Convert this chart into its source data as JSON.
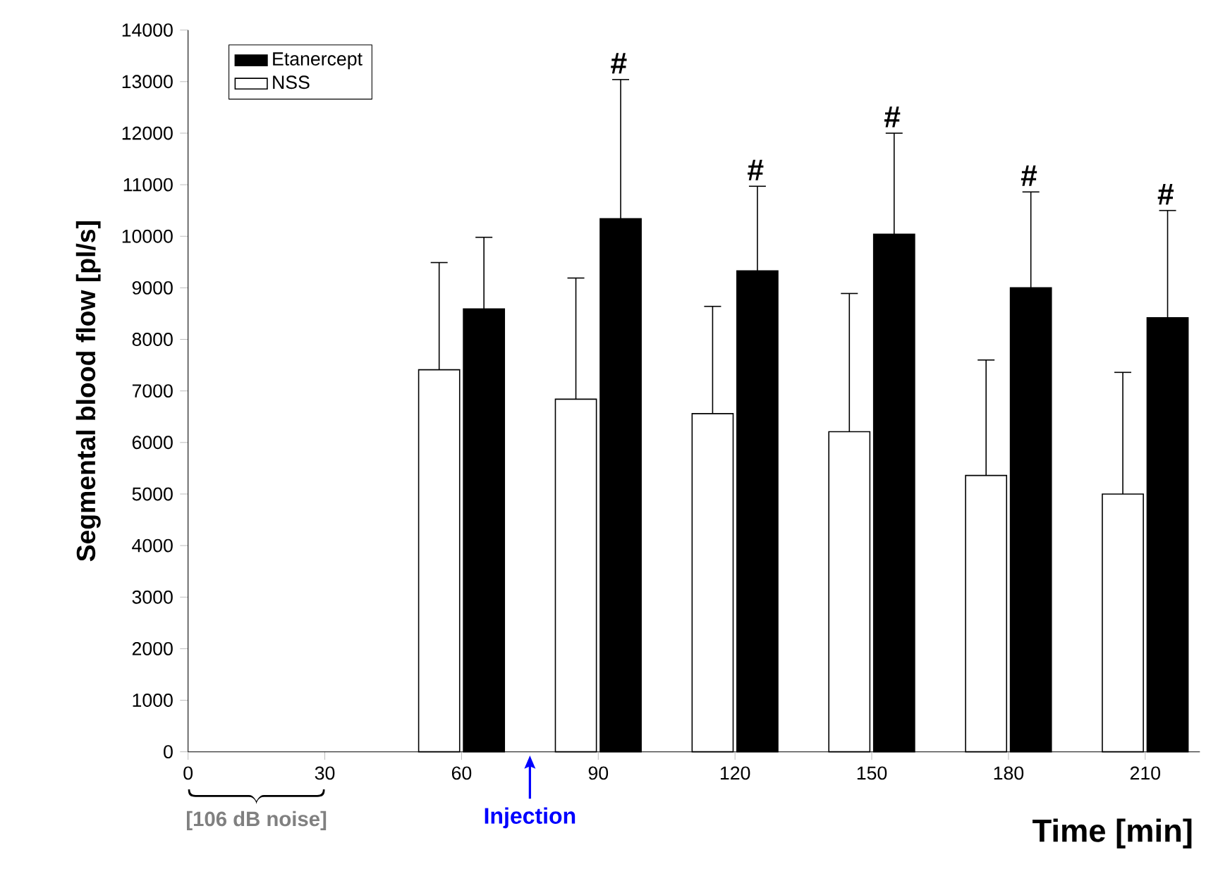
{
  "chart_data": {
    "type": "bar",
    "xlabel": "Time [min]",
    "ylabel": "Segmental blood flow  [pl/s]",
    "x": [
      60,
      90,
      120,
      150,
      180,
      210
    ],
    "series": [
      {
        "name": "NSS",
        "color": "#ffffff",
        "values": [
          7410,
          6840,
          6560,
          6210,
          5360,
          5000
        ],
        "errors": [
          [
            7410,
            9490
          ],
          [
            6840,
            9190
          ],
          [
            6560,
            8640
          ],
          [
            6210,
            8890
          ],
          [
            5360,
            7600
          ],
          [
            5000,
            7360
          ]
        ]
      },
      {
        "name": "Etanercept",
        "color": "#000000",
        "values": [
          8590,
          10340,
          9330,
          10040,
          9000,
          8420
        ],
        "errors": [
          [
            8590,
            9980
          ],
          [
            10340,
            13040
          ],
          [
            9330,
            10970
          ],
          [
            10040,
            12000
          ],
          [
            9000,
            10860
          ],
          [
            8420,
            10500
          ]
        ]
      }
    ],
    "xlim": [
      0,
      222
    ],
    "xticks": [
      0,
      30,
      60,
      90,
      120,
      150,
      180,
      210
    ],
    "ylim": [
      0,
      14000
    ],
    "yticks": [
      0,
      1000,
      2000,
      3000,
      4000,
      5000,
      6000,
      7000,
      8000,
      9000,
      10000,
      11000,
      12000,
      13000,
      14000
    ],
    "legend": "top left",
    "grid": false,
    "annotations": [
      "#",
      "#",
      "#",
      "#",
      "#",
      "[106 dB noise]",
      "Injection"
    ]
  }
}
